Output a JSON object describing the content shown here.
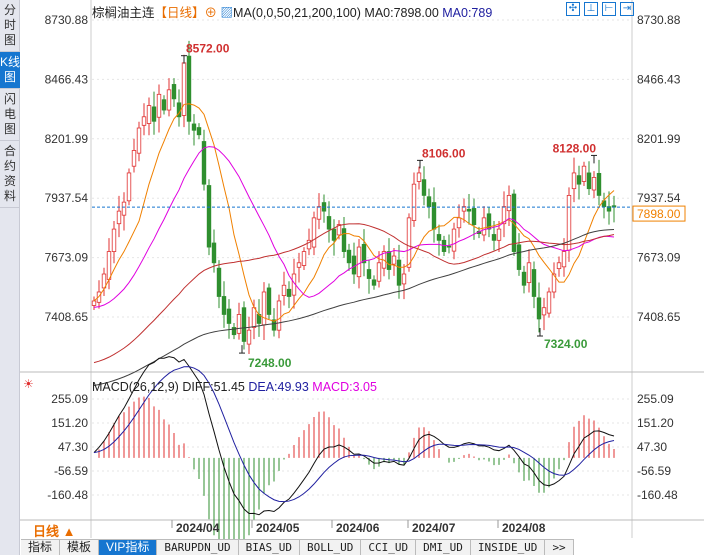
{
  "sidebar": {
    "items": [
      {
        "label": "分时图"
      },
      {
        "label": "K线图",
        "selected": true
      },
      {
        "label": "闪电图"
      },
      {
        "label": "合约资料"
      }
    ]
  },
  "header": {
    "symbol": "棕榈油主连",
    "period": "【日线】",
    "ma_label": "MA(0,0,50,21,200,100)",
    "ma0": "MA0:7898.00",
    "ma0b": "MA0:789"
  },
  "toolbar": {
    "icons": [
      "crosshair-icon",
      "zoom-in-icon",
      "zoom-out-icon",
      "exit-icon"
    ]
  },
  "colors": {
    "up": "#e03030",
    "down": "#2f8f2f",
    "ma_fast": "#f08000",
    "ma_mid": "#e000e0",
    "ma_slow": "#c03030",
    "ma_long": "#404040",
    "last": "#1676d0"
  },
  "chart_data": [
    {
      "type": "candlestick",
      "ylim": [
        7408.65,
        8730.88
      ],
      "yticks": [
        "8730.88",
        "8466.43",
        "8201.99",
        "7937.54",
        "7673.09",
        "7408.65"
      ],
      "last_price": "7898.00",
      "last_value": 7898,
      "annotations": [
        {
          "text": "8572.00",
          "value": 8572
        },
        {
          "text": "7248.00",
          "value": 7248
        },
        {
          "text": "8106.00",
          "value": 8106
        },
        {
          "text": "8128.00",
          "value": 8128
        },
        {
          "text": "7324.00",
          "value": 7324
        }
      ],
      "xticks": [
        "2024/04",
        "2024/05",
        "2024/06",
        "2024/07",
        "2024/08"
      ],
      "closes": [
        7480,
        7520,
        7600,
        7700,
        7800,
        7880,
        7920,
        8050,
        8150,
        8250,
        8300,
        8350,
        8280,
        8400,
        8330,
        8420,
        8380,
        8300,
        8540,
        8280,
        8240,
        8220,
        8000,
        7720,
        7650,
        7500,
        7420,
        7380,
        7330,
        7420,
        7300,
        7350,
        7450,
        7380,
        7520,
        7420,
        7350,
        7480,
        7550,
        7500,
        7600,
        7650,
        7700,
        7750,
        7850,
        7900,
        7880,
        7800,
        7750,
        7820,
        7700,
        7650,
        7600,
        7720,
        7650,
        7580,
        7550,
        7650,
        7700,
        7620,
        7680,
        7550,
        7600,
        7850,
        8000,
        8050,
        7950,
        7900,
        7800,
        7750,
        7700,
        7720,
        7800,
        7850,
        7900,
        7880,
        7820,
        7780,
        7850,
        7800,
        7750,
        7800,
        7900,
        7950,
        7700,
        7620,
        7550,
        7650,
        7500,
        7400,
        7450,
        7520,
        7600,
        7650,
        7700,
        7950,
        8050,
        8000,
        8080,
        7980,
        8030,
        7950,
        7900,
        7880,
        7898
      ]
    },
    {
      "type": "macd",
      "title": "MACD(26,12,9)",
      "diff": "DIFF:51.45",
      "dea": "DEA:49.93",
      "macd": "MACD:3.05",
      "yticks": [
        "255.09",
        "151.20",
        "47.30",
        "-56.59",
        "-160.48"
      ],
      "ylim": [
        -160.48,
        255.09
      ]
    }
  ],
  "footer": {
    "period": "日线 ▲",
    "tabs": [
      "指标",
      "模板",
      "VIP指标",
      "BARUPDN_UD",
      "BIAS_UD",
      "BOLL_UD",
      "CCI_UD",
      "DMI_UD",
      "INSIDE_UD",
      ">>"
    ]
  }
}
